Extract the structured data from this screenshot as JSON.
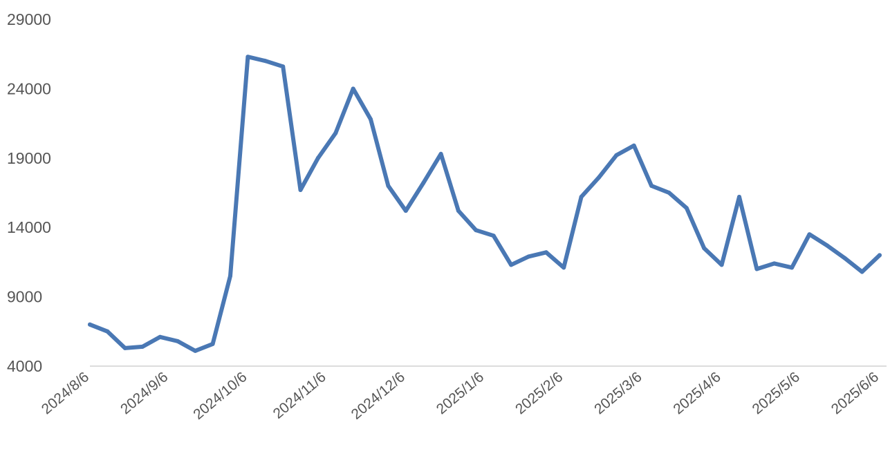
{
  "chart_data": {
    "type": "line",
    "title": "",
    "xlabel": "",
    "ylabel": "",
    "ylim": [
      4000,
      29000
    ],
    "yticks": [
      4000,
      9000,
      14000,
      19000,
      24000,
      29000
    ],
    "xtick_labels": [
      "2024/8/6",
      "2024/9/6",
      "2024/10/6",
      "2024/11/6",
      "2024/12/6",
      "2025/1/6",
      "2025/2/6",
      "2025/3/6",
      "2025/4/6",
      "2025/5/6",
      "2025/6/6"
    ],
    "grid": false,
    "legend": "none",
    "color": "#4a78b4",
    "series": [
      {
        "values": [
          7000,
          6500,
          5300,
          5400,
          6100,
          5800,
          5100,
          5600,
          10500,
          26300,
          26000,
          25600,
          16700,
          19000,
          20800,
          24000,
          21800,
          17000,
          15200,
          17200,
          19300,
          15200,
          13800,
          13400,
          11300,
          11900,
          12200,
          11100,
          16200,
          17600,
          19200,
          19900,
          17000,
          16500,
          15400,
          12500,
          11300,
          16200,
          11000,
          11400,
          11100,
          13500,
          12700,
          11800,
          10800,
          12000
        ]
      }
    ]
  }
}
